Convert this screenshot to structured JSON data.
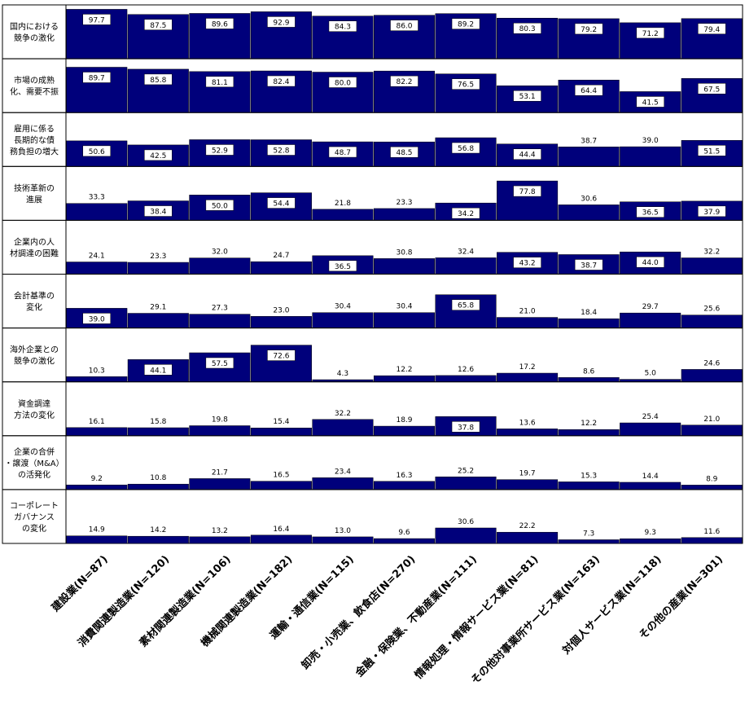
{
  "chart_data": {
    "type": "bar",
    "layout": "small-multiples",
    "ylim": [
      0,
      100
    ],
    "bar_color": "#00007B",
    "categories": [
      "建設業(N=87)",
      "消費関連製造業(N=120)",
      "素材関連製造業(N=106)",
      "機械関連製造業(N=182)",
      "運輸・通信業(N=115)",
      "卸売・小売業、飲食店(N=270)",
      "金融・保険業、不動産業(N=111)",
      "情報処理・情報サービス業(N=81)",
      "その他対事業所サービス業(N=163)",
      "対個人サービス業(N=118)",
      "その他の産業(N=301)"
    ],
    "series": [
      {
        "name": "国内における競争の激化",
        "values": [
          97.7,
          87.5,
          89.6,
          92.9,
          84.3,
          86.0,
          89.2,
          80.3,
          79.2,
          71.2,
          79.4
        ]
      },
      {
        "name": "市場の成熟化、需要不振",
        "values": [
          89.7,
          85.8,
          81.1,
          82.4,
          80.0,
          82.2,
          76.5,
          53.1,
          64.4,
          41.5,
          67.5
        ]
      },
      {
        "name": "雇用に係る長期的な債務負担の増大",
        "values": [
          50.6,
          42.5,
          52.9,
          52.8,
          48.7,
          48.5,
          56.8,
          44.4,
          38.7,
          39.0,
          51.5
        ]
      },
      {
        "name": "技術革新の進展",
        "values": [
          33.3,
          38.4,
          50.0,
          54.4,
          21.8,
          23.3,
          34.2,
          77.8,
          30.6,
          36.5,
          37.9
        ]
      },
      {
        "name": "企業内の人材調達の困難",
        "values": [
          24.1,
          23.3,
          32.0,
          24.7,
          36.5,
          30.8,
          32.4,
          43.2,
          38.7,
          44.0,
          32.2
        ]
      },
      {
        "name": "会計基準の変化",
        "values": [
          39.0,
          29.1,
          27.3,
          23.0,
          30.4,
          30.4,
          65.8,
          21.0,
          18.4,
          29.7,
          25.6
        ]
      },
      {
        "name": "海外企業との競争の激化",
        "values": [
          10.3,
          44.1,
          57.5,
          72.6,
          4.3,
          12.2,
          12.6,
          17.2,
          8.6,
          5.0,
          24.6
        ]
      },
      {
        "name": "資金調達方法の変化",
        "values": [
          16.1,
          15.8,
          19.8,
          15.4,
          32.2,
          18.9,
          37.8,
          13.6,
          12.2,
          25.4,
          21.0
        ]
      },
      {
        "name": "企業の合併・譲渡（M&A）の活発化",
        "values": [
          9.2,
          10.8,
          21.7,
          16.5,
          23.4,
          16.3,
          25.2,
          19.7,
          15.3,
          14.4,
          8.9
        ]
      },
      {
        "name": "コーポレートガバナンスの変化",
        "values": [
          14.9,
          14.2,
          13.2,
          16.4,
          13.0,
          9.6,
          30.6,
          22.2,
          7.3,
          9.3,
          11.6
        ]
      }
    ],
    "row_labels": [
      [
        "国内における",
        "競争の激化"
      ],
      [
        "市場の成熟",
        "化、需要不振"
      ],
      [
        "雇用に係る",
        "長期的な債",
        "務負担の増大"
      ],
      [
        "技術革新の",
        "進展"
      ],
      [
        "企業内の人",
        "材調達の困難"
      ],
      [
        "会計基準の",
        "変化"
      ],
      [
        "海外企業との",
        "競争の激化"
      ],
      [
        "資金調達",
        "方法の変化"
      ],
      [
        "企業の合併",
        "・譲渡（M&A）",
        "の活発化"
      ],
      [
        "コーポレート",
        "ガバナンス",
        "の変化"
      ]
    ],
    "label_boxed_rows": [
      [
        true,
        true,
        true,
        true,
        true,
        true,
        true,
        true,
        true,
        true,
        true
      ],
      [
        true,
        true,
        true,
        true,
        true,
        true,
        true,
        true,
        true,
        true,
        true
      ],
      [
        true,
        true,
        true,
        true,
        true,
        true,
        true,
        true,
        false,
        false,
        true
      ],
      [
        false,
        true,
        true,
        true,
        false,
        false,
        true,
        true,
        false,
        true,
        true
      ],
      [
        false,
        false,
        false,
        false,
        true,
        false,
        false,
        true,
        true,
        true,
        false
      ],
      [
        true,
        false,
        false,
        false,
        false,
        false,
        true,
        false,
        false,
        false,
        false
      ],
      [
        false,
        true,
        true,
        true,
        false,
        false,
        false,
        false,
        false,
        false,
        false
      ],
      [
        false,
        false,
        false,
        false,
        false,
        false,
        true,
        false,
        false,
        false,
        false
      ],
      [
        false,
        false,
        false,
        false,
        false,
        false,
        false,
        false,
        false,
        false,
        false
      ],
      [
        false,
        false,
        false,
        false,
        false,
        false,
        false,
        false,
        false,
        false,
        false
      ]
    ]
  }
}
